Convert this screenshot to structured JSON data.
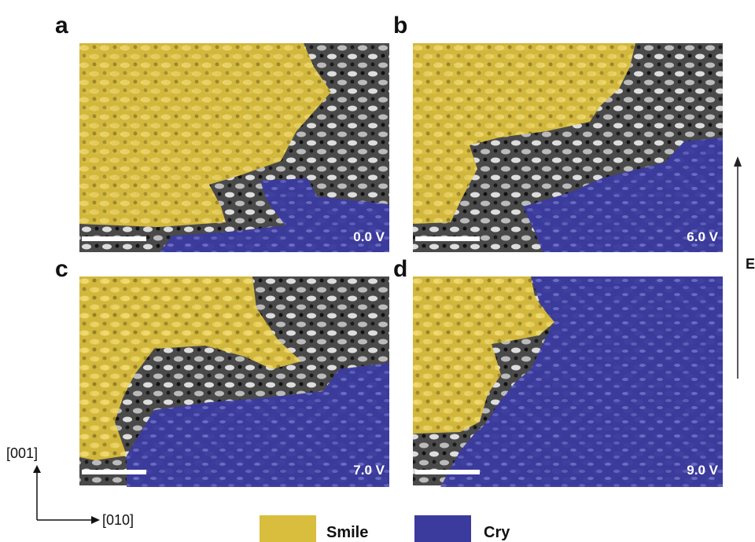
{
  "panels": [
    {
      "label": "a",
      "voltage": "0.0 V"
    },
    {
      "label": "b",
      "voltage": "6.0 V"
    },
    {
      "label": "c",
      "voltage": "7.0 V"
    },
    {
      "label": "d",
      "voltage": "9.0 V"
    }
  ],
  "field_label": "E",
  "axes": {
    "vertical": "[001]",
    "horizontal": "[010]"
  },
  "legend": [
    {
      "name": "Smile",
      "color": "#d9bd3c"
    },
    {
      "name": "Cry",
      "color": "#3b3b9e"
    }
  ]
}
